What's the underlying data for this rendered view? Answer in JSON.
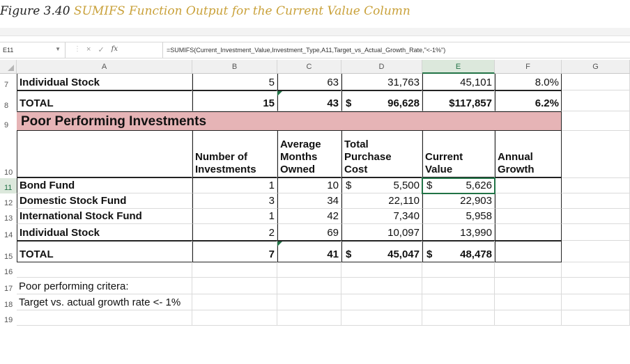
{
  "caption": {
    "prefix": "Figure 3.40 ",
    "title": "SUMIFS Function Output for the Current Value Column"
  },
  "formula_bar": {
    "name_box": "E11",
    "formula": "=SUMIFS(Current_Investment_Value,Investment_Type,A11,Target_vs_Actual_Growth_Rate,\"<-1%\")",
    "fx_label": "fx",
    "cancel_icon": "×",
    "enter_icon": "✓"
  },
  "columns": [
    "A",
    "B",
    "C",
    "D",
    "E",
    "F",
    "G"
  ],
  "selected_column": "E",
  "rows": {
    "r7": {
      "num": "7",
      "a": "Individual Stock",
      "b": "5",
      "c": "63",
      "d": "31,763",
      "e": "45,101",
      "f": "8.0%"
    },
    "r8": {
      "num": "8",
      "a": "TOTAL",
      "b": "15",
      "c": "43",
      "d_sym": "$",
      "d": "96,628",
      "e": "$117,857",
      "f": "6.2%"
    },
    "r9": {
      "num": "9",
      "title": "Poor Performing Investments"
    },
    "r10": {
      "num": "10",
      "b": [
        "Number of",
        "Investments"
      ],
      "c": [
        "Average",
        "Months",
        "Owned"
      ],
      "d": [
        "Total",
        "Purchase",
        "Cost"
      ],
      "e": [
        "Current",
        "Value"
      ],
      "f": [
        "Annual",
        "Growth"
      ]
    },
    "r11": {
      "num": "11",
      "a": "Bond Fund",
      "b": "1",
      "c": "10",
      "d_sym": "$",
      "d": "5,500",
      "e_sym": "$",
      "e": "5,626"
    },
    "r12": {
      "num": "12",
      "a": "Domestic Stock Fund",
      "b": "3",
      "c": "34",
      "d": "22,110",
      "e": "22,903"
    },
    "r13": {
      "num": "13",
      "a": "International Stock Fund",
      "b": "1",
      "c": "42",
      "d": "7,340",
      "e": "5,958"
    },
    "r14": {
      "num": "14",
      "a": "Individual Stock",
      "b": "2",
      "c": "69",
      "d": "10,097",
      "e": "13,990"
    },
    "r15": {
      "num": "15",
      "a": "TOTAL",
      "b": "7",
      "c": "41",
      "d_sym": "$",
      "d": "45,047",
      "e_sym": "$",
      "e": "48,478"
    },
    "r16": {
      "num": "16"
    },
    "r17": {
      "num": "17",
      "a": "Poor performing critera:"
    },
    "r18": {
      "num": "18",
      "a": "Target vs. actual growth rate <- 1%"
    },
    "r19": {
      "num": "19"
    }
  },
  "colors": {
    "band_fill": "#e6b4b6",
    "selection": "#217346",
    "caption_accent": "#c9a13a"
  }
}
